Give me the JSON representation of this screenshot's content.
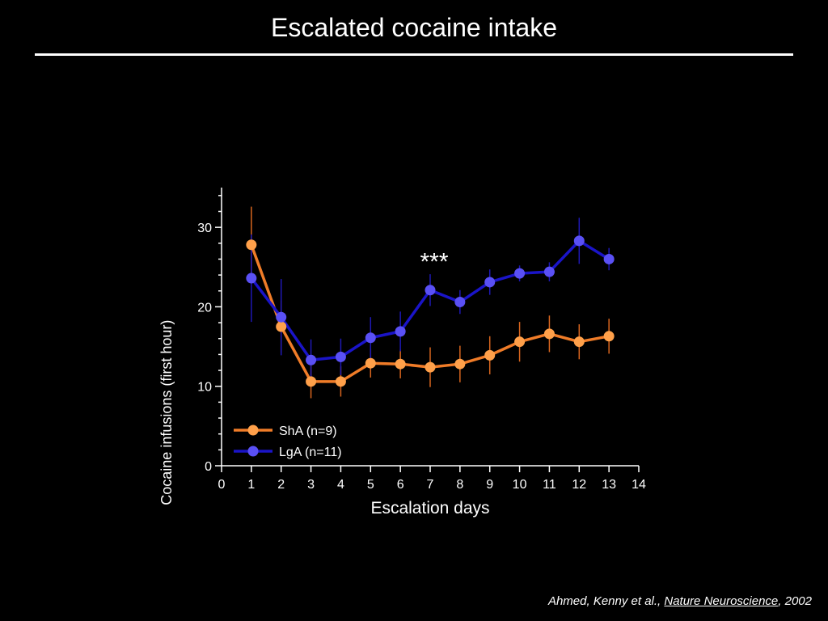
{
  "slide": {
    "title": "Escalated cocaine intake"
  },
  "citation": {
    "authors": "Ahmed, Kenny et al.,",
    "journal": "Nature Neuroscience",
    "year": ", 2002"
  },
  "chart_data": {
    "type": "line",
    "title": "",
    "xlabel": "Escalation days",
    "ylabel": "Cocaine infusions (first hour)",
    "xlim": [
      0,
      14
    ],
    "ylim": [
      0,
      35
    ],
    "xticks": [
      0,
      1,
      2,
      3,
      4,
      5,
      6,
      7,
      8,
      9,
      10,
      11,
      12,
      13,
      14
    ],
    "yticks_major": [
      0,
      10,
      20,
      30
    ],
    "yticks_minor": [
      2,
      4,
      6,
      8,
      12,
      14,
      16,
      18,
      22,
      24,
      26,
      28,
      32,
      34
    ],
    "x": [
      1,
      2,
      3,
      4,
      5,
      6,
      7,
      8,
      9,
      10,
      11,
      12,
      13
    ],
    "grid": false,
    "legend_position": "bottom-left",
    "annotation": {
      "text": "***",
      "x": 7,
      "y": 26.5
    },
    "series": [
      {
        "name": "ShA (n=9)",
        "color": "#f07c28",
        "marker_color": "#ffa04a",
        "errorbar_color": "#d8651e",
        "values": [
          27.8,
          17.5,
          10.6,
          10.6,
          12.9,
          12.8,
          12.4,
          12.8,
          13.9,
          15.6,
          16.6,
          15.6,
          16.3
        ],
        "errors": [
          4.8,
          3.3,
          2.1,
          1.9,
          1.8,
          1.8,
          2.5,
          2.3,
          2.4,
          2.5,
          2.3,
          2.2,
          2.2
        ]
      },
      {
        "name": "LgA (n=11)",
        "color": "#1a14c8",
        "marker_color": "#5a50f5",
        "errorbar_color": "#1e18b4",
        "values": [
          23.6,
          18.7,
          13.3,
          13.7,
          16.1,
          16.9,
          22.1,
          20.6,
          23.1,
          24.2,
          24.4,
          28.3,
          26.0
        ],
        "errors": [
          5.5,
          4.8,
          2.6,
          2.3,
          2.6,
          2.5,
          2.0,
          1.5,
          1.6,
          1.0,
          1.2,
          2.9,
          1.4
        ]
      }
    ]
  }
}
